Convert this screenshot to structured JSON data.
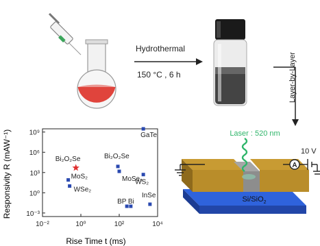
{
  "step1": {
    "arrow_top_label": "Hydrothermal",
    "arrow_bottom_label": "150 °C , 6 h"
  },
  "step2": {
    "vertical_label": "Layer-by-Layer"
  },
  "device": {
    "laser_label": "Laser : 520 nm",
    "voltage_label": "10 V",
    "substrate_label": "Si/SiO",
    "substrate_subscript": "2"
  },
  "colors": {
    "solution": "#e0443c",
    "electrode": "#b98d2a",
    "channel": "#8d8d8d",
    "substrate": "#2d5ed6",
    "laser": "#2fb56a",
    "star": "#e03030",
    "point": "#2a49b0"
  },
  "chart_data": {
    "type": "scatter",
    "xlabel": "Rise Time t (ms)",
    "ylabel": "Responsivity R (mAW⁻¹)",
    "x_scale": "log",
    "y_scale": "log",
    "xlim": [
      0.01,
      10000
    ],
    "ylim": [
      0.0003,
      3000000000
    ],
    "x_ticks": [
      "10⁻²",
      "10⁰",
      "10²",
      "10⁴"
    ],
    "y_ticks": [
      "10⁻³",
      "10⁰",
      "10³",
      "10⁶",
      "10⁹"
    ],
    "grid": false,
    "points": [
      {
        "label": "Bi₂O₂Se",
        "x": 0.55,
        "y": 5000,
        "marker": "star",
        "this_work": true
      },
      {
        "label": "MoS₂",
        "x": 0.22,
        "y": 80,
        "marker": "square"
      },
      {
        "label": "WSe₂",
        "x": 0.26,
        "y": 10,
        "marker": "square"
      },
      {
        "label": "Bi₂O₂Se",
        "x": 85,
        "y": 8000,
        "marker": "square"
      },
      {
        "label": "MoSe₂",
        "x": 100,
        "y": 1500,
        "marker": "square"
      },
      {
        "label": "GaTe",
        "x": 1800,
        "y": 3000000000,
        "marker": "square"
      },
      {
        "label": "WS₂",
        "x": 1800,
        "y": 500,
        "marker": "square"
      },
      {
        "label": "BP",
        "x": 250,
        "y": 0.01,
        "marker": "square"
      },
      {
        "label": "Bi",
        "x": 400,
        "y": 0.01,
        "marker": "square"
      },
      {
        "label": "InSe",
        "x": 4000,
        "y": 0.02,
        "marker": "square"
      }
    ]
  }
}
